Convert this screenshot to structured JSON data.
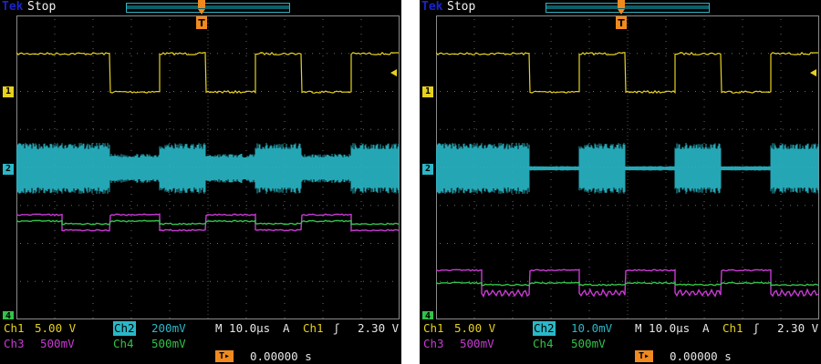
{
  "screens": [
    {
      "id": "left",
      "brand": "Tek",
      "status": "Stop",
      "ch1": {
        "label": "Ch1",
        "scale": "5.00 V"
      },
      "ch2": {
        "label": "Ch2",
        "scale": "200mV"
      },
      "ch3": {
        "label": "Ch3",
        "scale": "500mV"
      },
      "ch4": {
        "label": "Ch4",
        "scale": "500mV"
      },
      "timebase": "M 10.0µs",
      "trigger": {
        "mode": "A",
        "source": "Ch1",
        "slope_symbol": "ʃ",
        "level": "2.30 V"
      },
      "trigger_delay": "0.00000 s",
      "channel_markers": [
        "1",
        "2",
        "4"
      ],
      "colors": {
        "ch1": "#e6d21e",
        "ch2": "#2ab8c8",
        "ch3": "#c83ad2",
        "ch4": "#33c24a",
        "trigger": "#f08a1e"
      }
    },
    {
      "id": "right",
      "brand": "Tek",
      "status": "Stop",
      "ch1": {
        "label": "Ch1",
        "scale": "5.00 V"
      },
      "ch2": {
        "label": "Ch2",
        "scale": "10.0mV"
      },
      "ch3": {
        "label": "Ch3",
        "scale": "500mV"
      },
      "ch4": {
        "label": "Ch4",
        "scale": "500mV"
      },
      "timebase": "M 10.0µs",
      "trigger": {
        "mode": "A",
        "source": "Ch1",
        "slope_symbol": "ʃ",
        "level": "2.30 V"
      },
      "trigger_delay": "0.00000 s",
      "channel_markers": [
        "1",
        "2",
        "4"
      ],
      "colors": {
        "ch1": "#e6d21e",
        "ch2": "#2ab8c8",
        "ch3": "#c83ad2",
        "ch4": "#33c24a",
        "trigger": "#f08a1e"
      }
    }
  ],
  "icons": {
    "trigger_position": "trigger-t-marker-icon",
    "trigger_level": "trigger-level-arrow-icon",
    "delay": "trigger-delay-icon"
  }
}
